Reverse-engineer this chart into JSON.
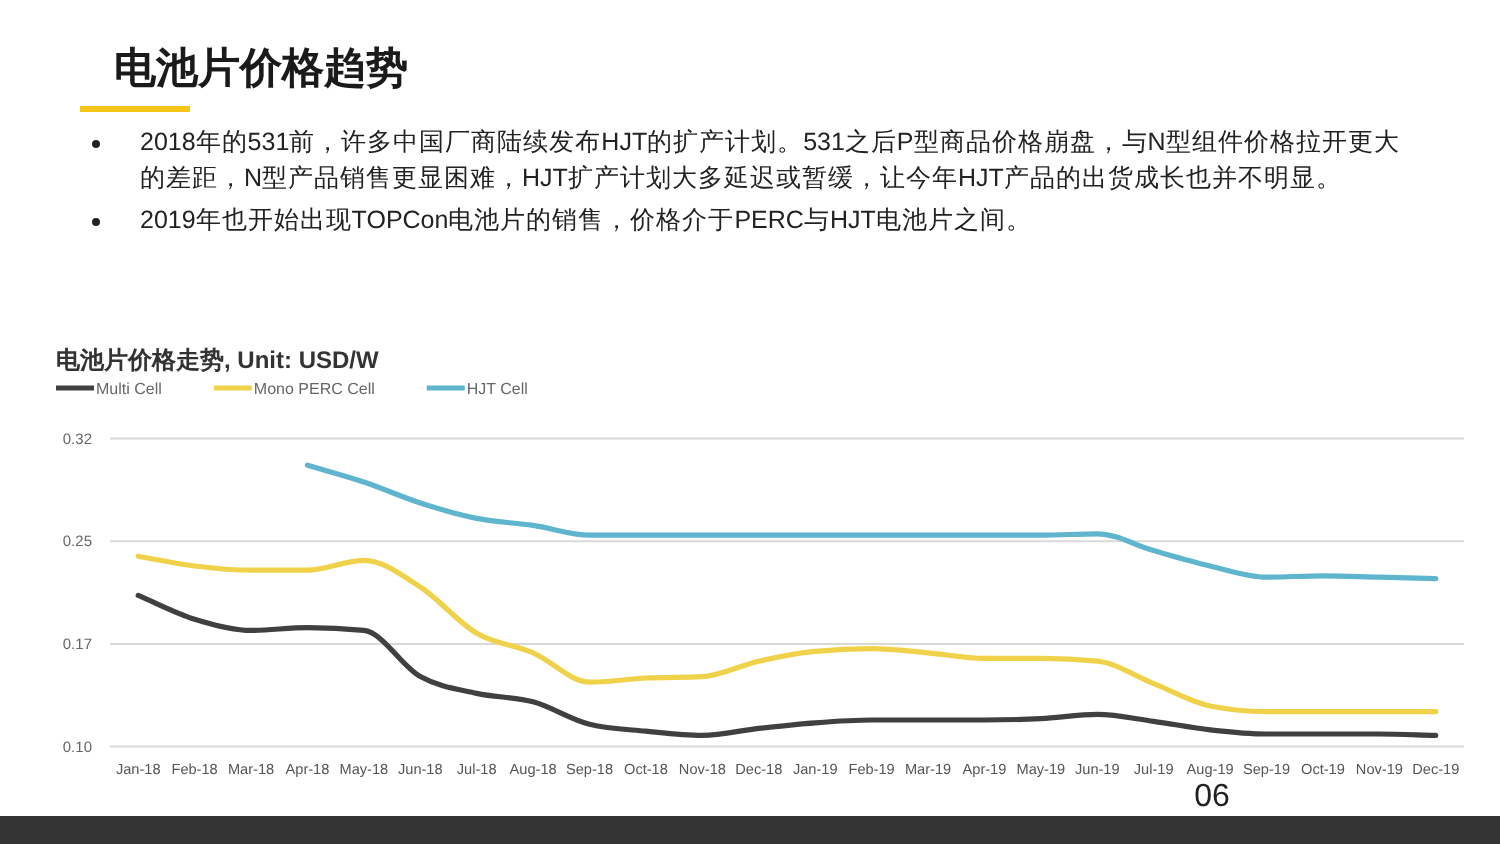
{
  "chart_data": {
    "type": "line",
    "title": "电池片价格趋势",
    "subtitle": "电池片价格走势, Unit: USD/W",
    "categories": [
      "Jan-18",
      "Feb-18",
      "Mar-18",
      "Apr-18",
      "May-18",
      "Jun-18",
      "Jul-18",
      "Aug-18",
      "Sep-18",
      "Oct-18",
      "Nov-18",
      "Dec-18",
      "Jan-19",
      "Feb-19",
      "Mar-19",
      "Apr-19",
      "May-19",
      "Jun-19",
      "Jul-19",
      "Aug-19",
      "Sep-19",
      "Oct-19",
      "Nov-19",
      "Dec-19"
    ],
    "series": [
      {
        "name": "Multi Cell",
        "color": "#404040",
        "values": [
          0.208,
          0.191,
          0.183,
          0.185,
          0.183,
          0.15,
          0.138,
          0.132,
          0.116,
          0.111,
          0.108,
          0.113,
          0.117,
          0.119,
          0.119,
          0.119,
          0.12,
          0.123,
          0.118,
          0.112,
          0.109,
          0.109,
          0.109,
          0.108
        ]
      },
      {
        "name": "Mono PERC Cell",
        "color": "#f0d24a",
        "values": [
          0.236,
          0.229,
          0.226,
          0.226,
          0.233,
          0.214,
          0.181,
          0.167,
          0.146,
          0.149,
          0.15,
          0.161,
          0.168,
          0.17,
          0.167,
          0.163,
          0.163,
          0.161,
          0.145,
          0.129,
          0.125,
          0.125,
          0.125,
          0.125
        ]
      },
      {
        "name": "HJT Cell",
        "color": "#5fb5cd",
        "values": [
          null,
          null,
          null,
          0.301,
          0.289,
          0.274,
          0.263,
          0.258,
          0.251,
          0.251,
          0.251,
          0.251,
          0.251,
          0.251,
          0.251,
          0.251,
          0.251,
          0.252,
          0.24,
          0.229,
          0.221,
          0.222,
          0.221,
          0.22
        ]
      }
    ],
    "ylim": [
      0.1,
      0.32
    ],
    "yticks": [
      {
        "value": 0.1,
        "label": "0.10"
      },
      {
        "value": 0.1733,
        "label": "0.17"
      },
      {
        "value": 0.2467,
        "label": "0.25"
      },
      0.32
    ],
    "grid": "y",
    "legend": "top left",
    "annotations": [
      "2018年的531前，许多中国厂商陆续发布HJT的扩产计划。531之后P型商品价格崩盘，与N型组件价格拉开更大的差距，N型产品销售更显困难，HJT扩产计划大多延迟或暂缓，让今年HJT产品的出货成长也并不明显。",
      "2019年也开始出现TOPCon电池片的销售，价格介于PERC与HJT电池片之间。",
      "06"
    ]
  }
}
